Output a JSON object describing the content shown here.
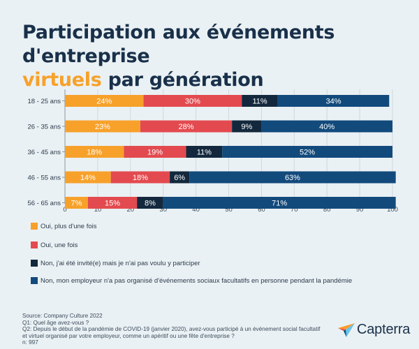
{
  "header": {
    "title_line1": "Participation aux événements d'entreprise",
    "title_accent": "virtuels",
    "title_rest": "par génération"
  },
  "chart_data": {
    "type": "bar",
    "orientation": "horizontal",
    "stacked": true,
    "categories": [
      "18 - 25 ans",
      "26 - 35 ans",
      "36 - 45 ans",
      "46 - 55 ans",
      "56 - 65 ans"
    ],
    "series": [
      {
        "name": "Oui, plus d'une fois",
        "color": "#f7a12b",
        "values": [
          24,
          23,
          18,
          14,
          7
        ]
      },
      {
        "name": "Oui, une fois",
        "color": "#e34a4f",
        "values": [
          30,
          28,
          19,
          18,
          15
        ]
      },
      {
        "name": "Non, j'ai été invité(e) mais je n'ai pas voulu y participer",
        "color": "#13283d",
        "values": [
          11,
          9,
          11,
          6,
          8
        ]
      },
      {
        "name": "Non, mon employeur n'a pas organisé d'événements sociaux facultatifs en personne pendant la pandémie",
        "color": "#124a7c",
        "values": [
          34,
          40,
          52,
          63,
          71
        ]
      }
    ],
    "data_labels": [
      [
        "24%",
        "30%",
        "11%",
        "34%"
      ],
      [
        "23%",
        "28%",
        "9%",
        "40%"
      ],
      [
        "18%",
        "19%",
        "11%",
        "52%"
      ],
      [
        "14%",
        "18%",
        "6%",
        "63%"
      ],
      [
        "7%",
        "15%",
        "8%",
        "71%"
      ]
    ],
    "x_ticks": [
      0,
      10,
      20,
      30,
      40,
      50,
      60,
      70,
      80,
      90,
      100
    ],
    "xlim": [
      0,
      100
    ],
    "grid": "vertical",
    "legend_position": "bottom"
  },
  "footer": {
    "source": "Source: Company Culture 2022",
    "q1": "Q1: Quel âge avez-vous ?",
    "q2_line1": "Q2: Depuis le début de la pandémie de COVID-19 (janvier 2020), avez-vous participé à un événement social facultatif",
    "q2_line2": "et virtuel  organisé par votre employeur, comme un apéritif ou une fête d'entreprise ?",
    "n": "n: 997"
  },
  "brand": {
    "name": "Capterra",
    "logo_icon": "capterra-arrow-icon"
  }
}
